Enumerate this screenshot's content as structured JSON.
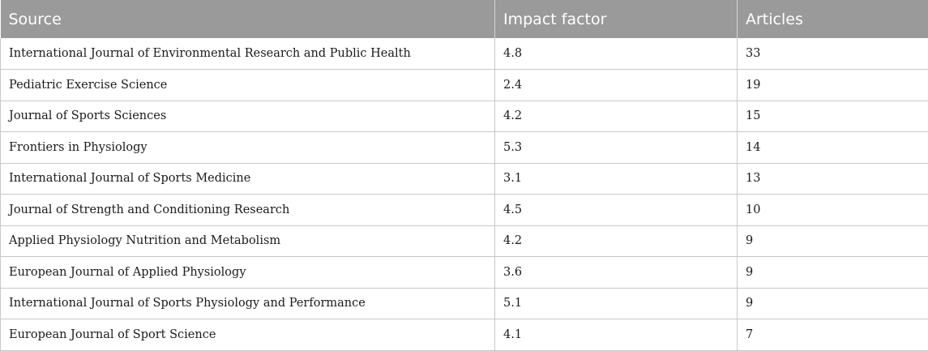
{
  "table": {
    "headers": {
      "source": "Source",
      "impact_factor": "Impact factor",
      "articles": "Articles"
    },
    "rows": [
      {
        "source": "International Journal of Environmental Research and Public Health",
        "impact_factor": "4.8",
        "articles": "33"
      },
      {
        "source": "Pediatric Exercise Science",
        "impact_factor": "2.4",
        "articles": "19"
      },
      {
        "source": "Journal of Sports Sciences",
        "impact_factor": "4.2",
        "articles": "15"
      },
      {
        "source": "Frontiers in Physiology",
        "impact_factor": "5.3",
        "articles": "14"
      },
      {
        "source": "International Journal of Sports Medicine",
        "impact_factor": "3.1",
        "articles": "13"
      },
      {
        "source": "Journal of Strength and Conditioning Research",
        "impact_factor": "4.5",
        "articles": "10"
      },
      {
        "source": "Applied Physiology Nutrition and Metabolism",
        "impact_factor": "4.2",
        "articles": "9"
      },
      {
        "source": "European Journal of Applied Physiology",
        "impact_factor": "3.6",
        "articles": "9"
      },
      {
        "source": "International Journal of Sports Physiology and Performance",
        "impact_factor": "5.1",
        "articles": "9"
      },
      {
        "source": "European Journal of Sport Science",
        "impact_factor": "4.1",
        "articles": "7"
      }
    ]
  }
}
